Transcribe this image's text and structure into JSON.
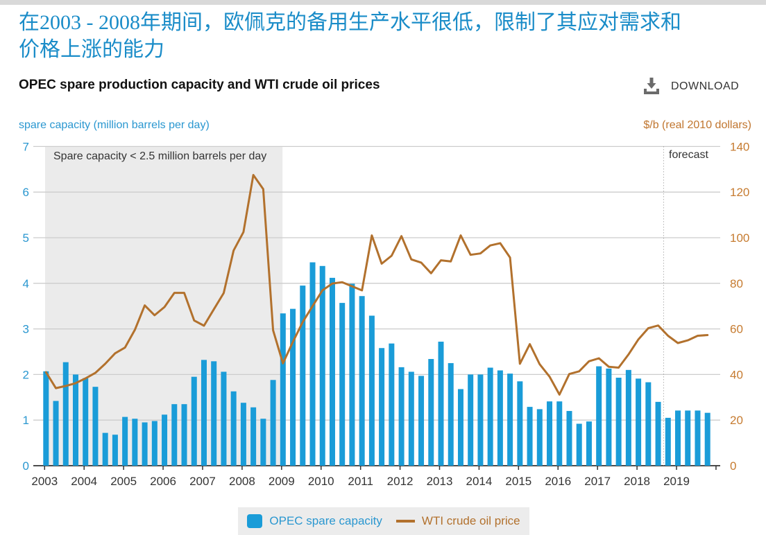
{
  "header": {
    "title_zh": "在2003 - 2008年期间，欧佩克的备用生产水平很低，限制了其应对需求和\n价格上涨的能力",
    "chart_title": "OPEC spare production capacity and WTI crude oil prices",
    "download_label": "DOWNLOAD"
  },
  "annotations": {
    "shaded": "Spare capacity < 2.5 million barrels per day",
    "forecast": "forecast"
  },
  "legend": {
    "bar_label": "OPEC spare capacity",
    "line_label": "WTI crude oil price"
  },
  "colors": {
    "bar": "#1a9cd8",
    "line": "#b2712d",
    "blue_text": "#2a97d0",
    "orange_text": "#c67b30",
    "title_blue": "#1a8cc8",
    "grid": "#cccccc",
    "axis": "#333333",
    "shade": "#ebebeb",
    "legend_bg": "#ececec",
    "topbar": "#d9d9d9",
    "forecast_line": "#8a8a8a"
  },
  "chart_data": {
    "type": "bar+line",
    "x_unit": "quarter",
    "year_labels": [
      "2003",
      "2004",
      "2005",
      "2006",
      "2007",
      "2008",
      "2009",
      "2010",
      "2011",
      "2012",
      "2013",
      "2014",
      "2015",
      "2016",
      "2017",
      "2018",
      "2019"
    ],
    "left_axis": {
      "label": "spare capacity (million barrels per day)",
      "min": 0,
      "max": 7,
      "ticks": [
        0,
        1,
        2,
        3,
        4,
        5,
        6,
        7
      ]
    },
    "right_axis": {
      "label": "$/b (real 2010 dollars)",
      "min": 0,
      "max": 140,
      "ticks": [
        0,
        20,
        40,
        60,
        80,
        100,
        120,
        140
      ]
    },
    "shaded_region": {
      "label": "Spare capacity < 2.5 million barrels per day",
      "from": "2003Q1",
      "to": "2008Q4"
    },
    "forecast_from": "2018Q4",
    "series": [
      {
        "name": "OPEC spare capacity",
        "type": "bar",
        "axis": "left",
        "values": [
          2.07,
          1.42,
          2.27,
          2.0,
          1.92,
          1.73,
          0.72,
          0.68,
          1.07,
          1.03,
          0.95,
          0.98,
          1.12,
          1.35,
          1.35,
          1.95,
          2.32,
          2.29,
          2.06,
          1.63,
          1.38,
          1.28,
          1.03,
          1.88,
          3.34,
          3.44,
          3.95,
          4.46,
          4.38,
          4.12,
          3.57,
          3.99,
          3.72,
          3.29,
          2.58,
          2.68,
          2.16,
          2.06,
          1.97,
          2.34,
          2.72,
          2.25,
          1.68,
          2.0,
          2.0,
          2.15,
          2.09,
          2.02,
          1.85,
          1.29,
          1.24,
          1.41,
          1.41,
          1.2,
          0.92,
          0.97,
          2.18,
          2.13,
          1.93,
          2.1,
          1.91,
          1.83,
          1.4,
          1.05,
          1.21,
          1.21,
          1.21,
          1.16
        ]
      },
      {
        "name": "WTI crude oil price",
        "type": "line",
        "axis": "right",
        "values": [
          41,
          34,
          35,
          36.2,
          38.3,
          40.7,
          44.7,
          49.3,
          51.8,
          59.6,
          70.3,
          66,
          69.6,
          75.8,
          75.8,
          63.7,
          61.4,
          68.6,
          75.7,
          94.4,
          102.5,
          127.5,
          121.3,
          59.4,
          44.9,
          54.3,
          63,
          70,
          76.9,
          79.9,
          80.5,
          78.7,
          76.9,
          101,
          88.6,
          92.1,
          100.7,
          90.5,
          89.1,
          84.4,
          90.1,
          89.6,
          101,
          92.5,
          93.1,
          96.6,
          97.6,
          91.3,
          44.7,
          53.3,
          44.5,
          39.1,
          31.2,
          40.2,
          41.4,
          45.8,
          47.1,
          43.4,
          43,
          48.8,
          55.4,
          60.3,
          61.5,
          57,
          53.8,
          55,
          57,
          57.3
        ]
      }
    ]
  }
}
